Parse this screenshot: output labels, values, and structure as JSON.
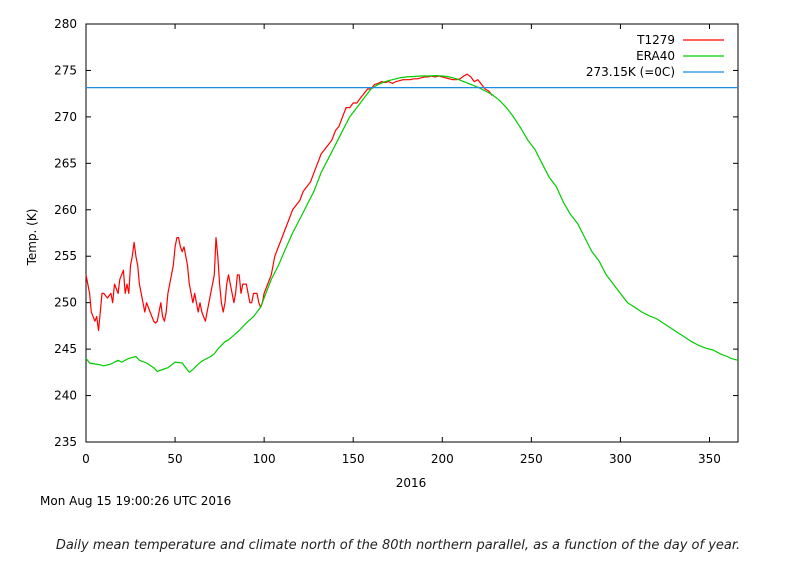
{
  "chart_data": {
    "type": "line",
    "title": "",
    "xlabel": "2016",
    "ylabel": "Temp. (K)",
    "xlim": [
      0,
      366
    ],
    "ylim": [
      235,
      280
    ],
    "x_ticks": [
      0,
      50,
      100,
      150,
      200,
      250,
      300,
      350
    ],
    "y_ticks": [
      235,
      240,
      245,
      250,
      255,
      260,
      265,
      270,
      275,
      280
    ],
    "grid": false,
    "legend_position": "top-right",
    "series": [
      {
        "name": "T1279",
        "color": "#ff0000",
        "points": [
          [
            0,
            253
          ],
          [
            2,
            251
          ],
          [
            3,
            249
          ],
          [
            5,
            248
          ],
          [
            6,
            248.5
          ],
          [
            7,
            247
          ],
          [
            8,
            249
          ],
          [
            9,
            251
          ],
          [
            10,
            251
          ],
          [
            12,
            250.5
          ],
          [
            14,
            251
          ],
          [
            15,
            250
          ],
          [
            16,
            252
          ],
          [
            18,
            251
          ],
          [
            19,
            252.5
          ],
          [
            20,
            253
          ],
          [
            21,
            253.5
          ],
          [
            22,
            251
          ],
          [
            23,
            252
          ],
          [
            24,
            251
          ],
          [
            25,
            254
          ],
          [
            26,
            255
          ],
          [
            27,
            256.5
          ],
          [
            28,
            255
          ],
          [
            29,
            254
          ],
          [
            30,
            252
          ],
          [
            31,
            251
          ],
          [
            32,
            250
          ],
          [
            33,
            249
          ],
          [
            34,
            250
          ],
          [
            35,
            249.5
          ],
          [
            36,
            249
          ],
          [
            37,
            248.5
          ],
          [
            38,
            248
          ],
          [
            39,
            247.8
          ],
          [
            40,
            248
          ],
          [
            41,
            249
          ],
          [
            42,
            250
          ],
          [
            43,
            248.5
          ],
          [
            44,
            248
          ],
          [
            45,
            249
          ],
          [
            46,
            251
          ],
          [
            47,
            252
          ],
          [
            48,
            253
          ],
          [
            49,
            254
          ],
          [
            50,
            256
          ],
          [
            51,
            257
          ],
          [
            52,
            257
          ],
          [
            53,
            256
          ],
          [
            54,
            255.5
          ],
          [
            55,
            256
          ],
          [
            56,
            255
          ],
          [
            57,
            254
          ],
          [
            58,
            252
          ],
          [
            59,
            251
          ],
          [
            60,
            250
          ],
          [
            61,
            251
          ],
          [
            62,
            250
          ],
          [
            63,
            249
          ],
          [
            64,
            250
          ],
          [
            65,
            249
          ],
          [
            66,
            248.5
          ],
          [
            67,
            248
          ],
          [
            68,
            249
          ],
          [
            69,
            250
          ],
          [
            70,
            251
          ],
          [
            71,
            252
          ],
          [
            72,
            253
          ],
          [
            73,
            257
          ],
          [
            74,
            255
          ],
          [
            75,
            252
          ],
          [
            76,
            250
          ],
          [
            77,
            249
          ],
          [
            78,
            250
          ],
          [
            79,
            252
          ],
          [
            80,
            253
          ],
          [
            81,
            252
          ],
          [
            82,
            251
          ],
          [
            83,
            250
          ],
          [
            84,
            251
          ],
          [
            85,
            253
          ],
          [
            86,
            253
          ],
          [
            87,
            251
          ],
          [
            88,
            252
          ],
          [
            89,
            252
          ],
          [
            90,
            252
          ],
          [
            91,
            251
          ],
          [
            92,
            250
          ],
          [
            93,
            250
          ],
          [
            94,
            251
          ],
          [
            95,
            251
          ],
          [
            96,
            251
          ],
          [
            97,
            250
          ],
          [
            98,
            249.5
          ],
          [
            99,
            250
          ],
          [
            100,
            251
          ],
          [
            102,
            252
          ],
          [
            104,
            253
          ],
          [
            106,
            255
          ],
          [
            108,
            256
          ],
          [
            110,
            257
          ],
          [
            112,
            258
          ],
          [
            114,
            259
          ],
          [
            116,
            260
          ],
          [
            118,
            260.5
          ],
          [
            120,
            261
          ],
          [
            122,
            262
          ],
          [
            124,
            262.5
          ],
          [
            126,
            263
          ],
          [
            128,
            264
          ],
          [
            130,
            265
          ],
          [
            132,
            266
          ],
          [
            134,
            266.5
          ],
          [
            136,
            267
          ],
          [
            138,
            267.5
          ],
          [
            140,
            268.5
          ],
          [
            142,
            269
          ],
          [
            144,
            270
          ],
          [
            146,
            271
          ],
          [
            148,
            271
          ],
          [
            150,
            271.5
          ],
          [
            152,
            271.5
          ],
          [
            154,
            272
          ],
          [
            156,
            272.5
          ],
          [
            158,
            273
          ],
          [
            160,
            273
          ],
          [
            162,
            273.5
          ],
          [
            164,
            273.6
          ],
          [
            166,
            273.8
          ],
          [
            168,
            273.7
          ],
          [
            170,
            273.8
          ],
          [
            172,
            273.6
          ],
          [
            174,
            273.8
          ],
          [
            176,
            273.9
          ],
          [
            178,
            274
          ],
          [
            180,
            274
          ],
          [
            182,
            274
          ],
          [
            184,
            274.1
          ],
          [
            186,
            274.1
          ],
          [
            188,
            274.2
          ],
          [
            190,
            274.3
          ],
          [
            192,
            274.3
          ],
          [
            194,
            274.4
          ],
          [
            196,
            274.3
          ],
          [
            198,
            274.4
          ],
          [
            200,
            274.3
          ],
          [
            202,
            274.2
          ],
          [
            204,
            274.1
          ],
          [
            206,
            274
          ],
          [
            208,
            274
          ],
          [
            210,
            274.1
          ],
          [
            212,
            274.4
          ],
          [
            214,
            274.6
          ],
          [
            216,
            274.3
          ],
          [
            218,
            273.8
          ],
          [
            220,
            274
          ],
          [
            222,
            273.5
          ],
          [
            224,
            273
          ],
          [
            226,
            272.8
          ],
          [
            228,
            272.3
          ]
        ]
      },
      {
        "name": "ERA40",
        "color": "#00cc00",
        "points": [
          [
            0,
            244
          ],
          [
            2,
            243.5
          ],
          [
            5,
            243.4
          ],
          [
            8,
            243.3
          ],
          [
            10,
            243.2
          ],
          [
            14,
            243.4
          ],
          [
            18,
            243.8
          ],
          [
            20,
            243.6
          ],
          [
            24,
            244
          ],
          [
            28,
            244.2
          ],
          [
            30,
            243.8
          ],
          [
            34,
            243.5
          ],
          [
            38,
            243
          ],
          [
            40,
            242.6
          ],
          [
            43,
            242.8
          ],
          [
            46,
            243
          ],
          [
            50,
            243.6
          ],
          [
            54,
            243.5
          ],
          [
            56,
            243
          ],
          [
            58,
            242.5
          ],
          [
            60,
            242.8
          ],
          [
            62,
            243.2
          ],
          [
            65,
            243.7
          ],
          [
            68,
            244
          ],
          [
            70,
            244.2
          ],
          [
            72,
            244.5
          ],
          [
            74,
            245
          ],
          [
            76,
            245.4
          ],
          [
            78,
            245.8
          ],
          [
            80,
            246
          ],
          [
            83,
            246.5
          ],
          [
            86,
            247
          ],
          [
            90,
            247.8
          ],
          [
            94,
            248.5
          ],
          [
            98,
            249.5
          ],
          [
            100,
            250.5
          ],
          [
            104,
            252.5
          ],
          [
            108,
            254
          ],
          [
            112,
            255.8
          ],
          [
            116,
            257.5
          ],
          [
            120,
            259
          ],
          [
            124,
            260.5
          ],
          [
            128,
            262
          ],
          [
            132,
            264
          ],
          [
            136,
            265.5
          ],
          [
            140,
            267
          ],
          [
            144,
            268.5
          ],
          [
            148,
            270
          ],
          [
            152,
            271
          ],
          [
            156,
            272
          ],
          [
            160,
            273
          ],
          [
            164,
            273.5
          ],
          [
            168,
            273.8
          ],
          [
            172,
            274
          ],
          [
            176,
            274.2
          ],
          [
            180,
            274.3
          ],
          [
            184,
            274.35
          ],
          [
            188,
            274.4
          ],
          [
            192,
            274.4
          ],
          [
            196,
            274.45
          ],
          [
            200,
            274.4
          ],
          [
            204,
            274.3
          ],
          [
            208,
            274.1
          ],
          [
            212,
            273.8
          ],
          [
            216,
            273.5
          ],
          [
            220,
            273.2
          ],
          [
            224,
            272.8
          ],
          [
            228,
            272.4
          ],
          [
            232,
            271.8
          ],
          [
            236,
            271
          ],
          [
            240,
            270
          ],
          [
            244,
            268.8
          ],
          [
            248,
            267.5
          ],
          [
            252,
            266.5
          ],
          [
            256,
            265
          ],
          [
            260,
            263.5
          ],
          [
            264,
            262.5
          ],
          [
            268,
            260.8
          ],
          [
            272,
            259.5
          ],
          [
            276,
            258.5
          ],
          [
            280,
            257
          ],
          [
            284,
            255.5
          ],
          [
            288,
            254.5
          ],
          [
            292,
            253
          ],
          [
            296,
            252
          ],
          [
            300,
            251
          ],
          [
            304,
            250
          ],
          [
            308,
            249.5
          ],
          [
            312,
            249
          ],
          [
            316,
            248.6
          ],
          [
            320,
            248.3
          ],
          [
            324,
            247.8
          ],
          [
            328,
            247.3
          ],
          [
            332,
            246.8
          ],
          [
            336,
            246.3
          ],
          [
            340,
            245.8
          ],
          [
            344,
            245.4
          ],
          [
            348,
            245.1
          ],
          [
            352,
            244.9
          ],
          [
            356,
            244.5
          ],
          [
            360,
            244.2
          ],
          [
            362,
            244
          ],
          [
            366,
            243.8
          ]
        ]
      },
      {
        "name": "273.15K (=0C)",
        "color": "#1e8ce0",
        "points": [
          [
            0,
            273.15
          ],
          [
            366,
            273.15
          ]
        ]
      }
    ]
  },
  "timestamp": "Mon Aug 15 19:00:26 UTC 2016",
  "caption": "Daily mean temperature and climate north of the 80th northern parallel, as a function of the day of year."
}
